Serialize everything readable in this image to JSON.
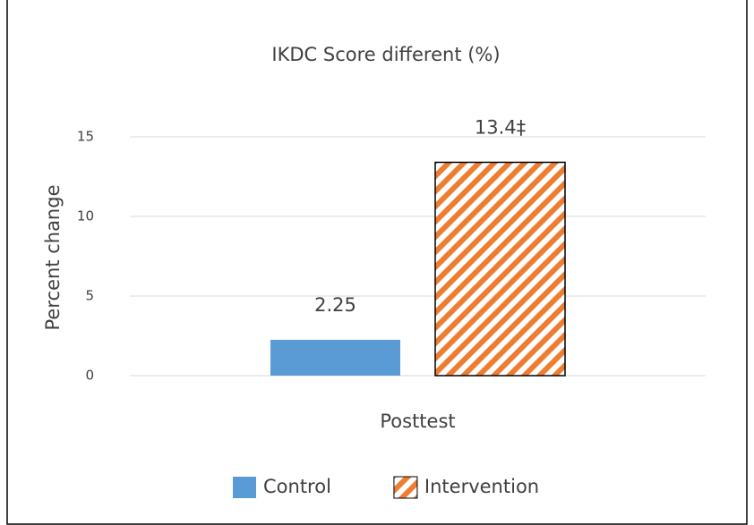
{
  "chart_data": {
    "type": "bar",
    "title": "IKDC Score different (%)",
    "y_label": "Percent change",
    "categories": [
      "Posttest"
    ],
    "series": [
      {
        "name": "Control",
        "color": "#5b9bd5",
        "values": [
          2.25
        ],
        "value_labels": [
          "2.25"
        ]
      },
      {
        "name": "Intervention",
        "color": "#ed7d31",
        "values": [
          13.4
        ],
        "value_labels": [
          "13.4‡"
        ],
        "hatch": true
      }
    ],
    "ylim": [
      0,
      15
    ],
    "yticks": [
      0,
      5,
      10,
      15
    ],
    "grid": true,
    "legend": "bottom"
  }
}
